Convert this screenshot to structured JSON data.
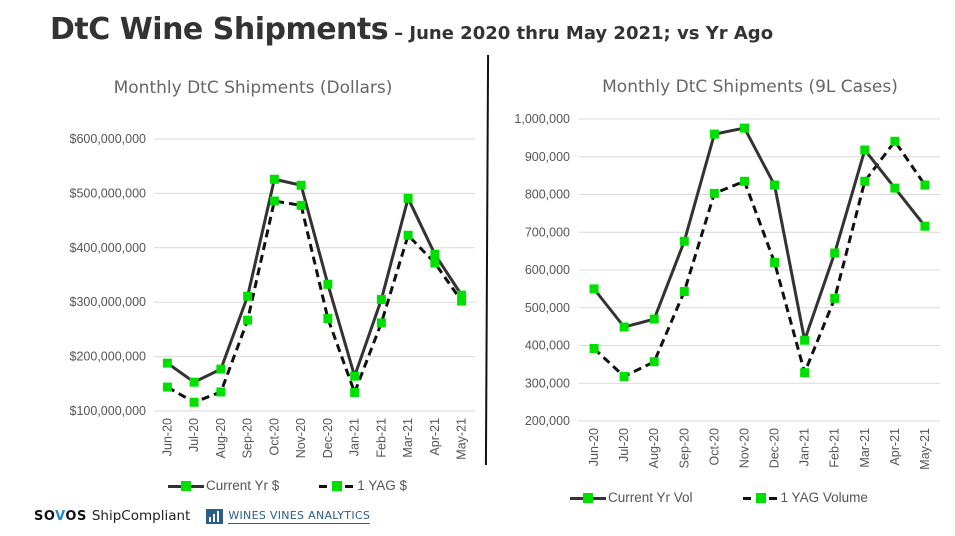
{
  "header": {
    "title": "DtC Wine Shipments",
    "subtitle": "– June 2020 thru May 2021; vs Yr Ago"
  },
  "footer": {
    "brand_sovos_pre": "SO",
    "brand_sovos_v": "V",
    "brand_sovos_post": "OS",
    "brand_shipcompliant": "ShipCompliant",
    "brand_wines_vines": "WINES VINES ANALYTICS"
  },
  "colors": {
    "marker": "#00e000",
    "line": "#333333",
    "grid": "#d9d9d9",
    "text": "#555555"
  },
  "chart_data": [
    {
      "type": "line",
      "title": "Monthly DtC Shipments (Dollars)",
      "xlabel": "",
      "ylabel": "",
      "categories": [
        "Jun-20",
        "Jul-20",
        "Aug-20",
        "Sep-20",
        "Oct-20",
        "Nov-20",
        "Dec-20",
        "Jan-21",
        "Feb-21",
        "Mar-21",
        "Apr-21",
        "May-21"
      ],
      "ylim": [
        100000000,
        600000000
      ],
      "yticks": [
        100000000,
        200000000,
        300000000,
        400000000,
        500000000,
        600000000
      ],
      "ytick_labels": [
        "$100,000,000",
        "$200,000,000",
        "$300,000,000",
        "$400,000,000",
        "$500,000,000",
        "$600,000,000"
      ],
      "grid": true,
      "legend_position": "bottom",
      "series": [
        {
          "name": "Current Yr $",
          "style": "solid",
          "values": [
            188000000,
            153000000,
            177000000,
            311000000,
            526000000,
            515000000,
            333000000,
            164000000,
            305000000,
            491000000,
            388000000,
            313000000
          ]
        },
        {
          "name": "1 YAG $",
          "style": "dashed",
          "values": [
            144000000,
            116000000,
            135000000,
            267000000,
            486000000,
            478000000,
            270000000,
            134000000,
            262000000,
            423000000,
            372000000,
            302000000
          ]
        }
      ]
    },
    {
      "type": "line",
      "title": "Monthly DtC Shipments (9L Cases)",
      "xlabel": "",
      "ylabel": "",
      "categories": [
        "Jun-20",
        "Jul-20",
        "Aug-20",
        "Sep-20",
        "Oct-20",
        "Nov-20",
        "Dec-20",
        "Jan-21",
        "Feb-21",
        "Mar-21",
        "Apr-21",
        "May-21"
      ],
      "ylim": [
        200000,
        1000000
      ],
      "yticks": [
        200000,
        300000,
        400000,
        500000,
        600000,
        700000,
        800000,
        900000,
        1000000
      ],
      "ytick_labels": [
        "200,000",
        "300,000",
        "400,000",
        "500,000",
        "600,000",
        "700,000",
        "800,000",
        "900,000",
        "1,000,000"
      ],
      "grid": true,
      "legend_position": "bottom",
      "series": [
        {
          "name": "Current Yr Vol",
          "style": "solid",
          "values": [
            550000,
            449000,
            470000,
            676000,
            960000,
            976000,
            825000,
            414000,
            645000,
            918000,
            817000,
            716000
          ]
        },
        {
          "name": "1 YAG Volume",
          "style": "dashed",
          "values": [
            392000,
            318000,
            357000,
            543000,
            803000,
            835000,
            620000,
            328000,
            525000,
            835000,
            941000,
            825000
          ]
        }
      ]
    }
  ]
}
